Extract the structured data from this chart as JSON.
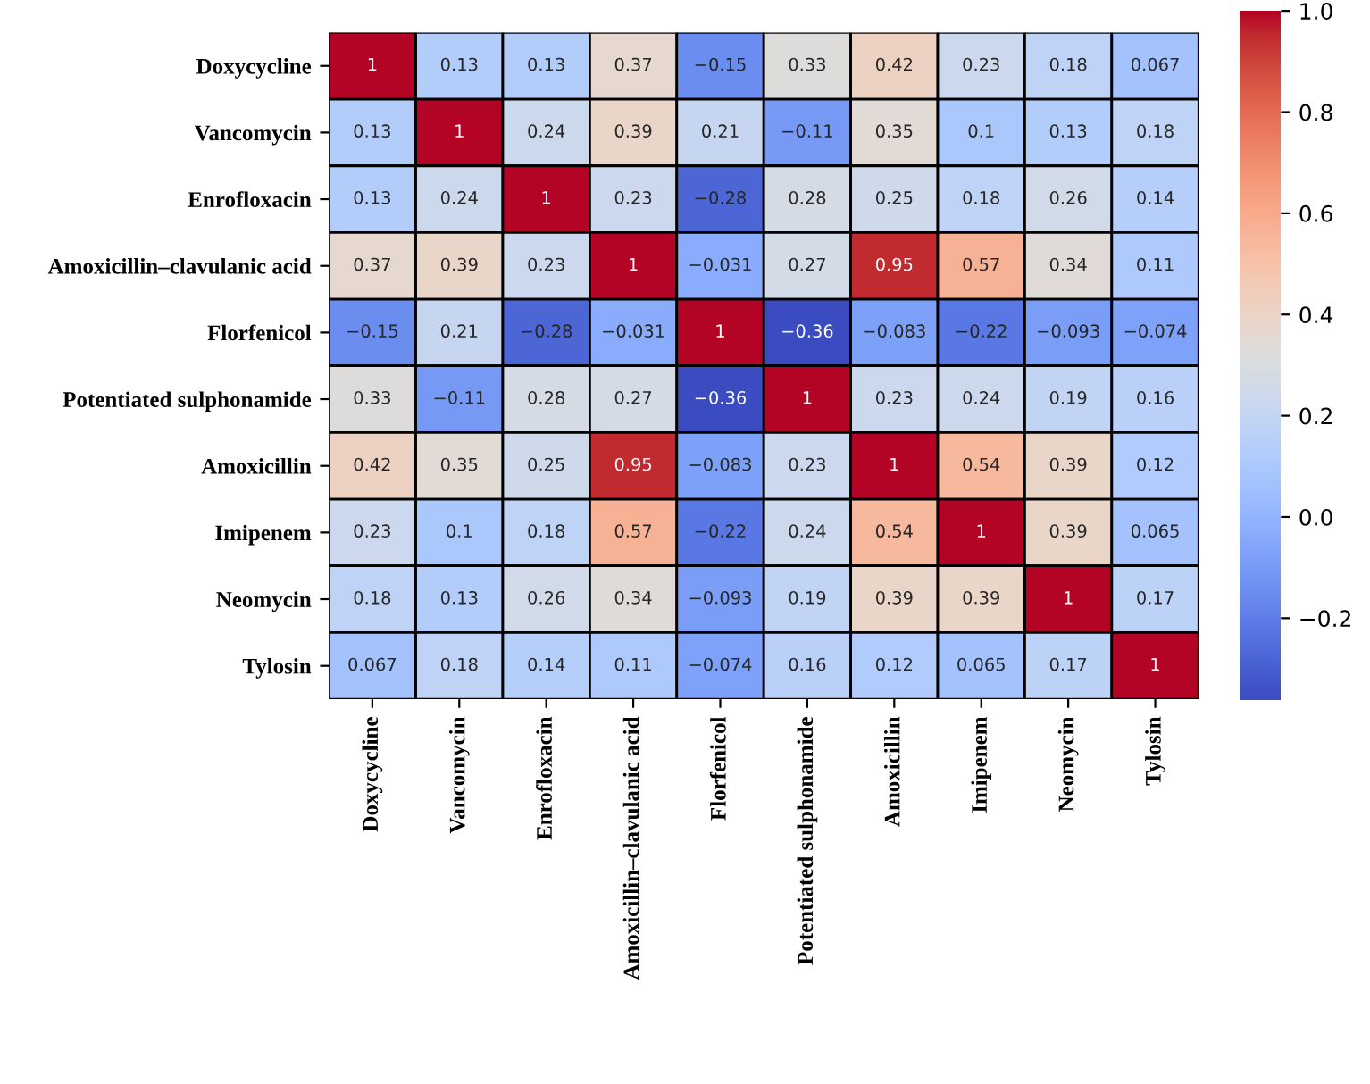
{
  "chart_data": {
    "type": "heatmap",
    "categories": [
      "Doxycycline",
      "Vancomycin",
      "Enrofloxacin",
      "Amoxicillin–clavulanic acid",
      "Florfenicol",
      "Potentiated sulphonamide",
      "Amoxicillin",
      "Imipenem",
      "Neomycin",
      "Tylosin"
    ],
    "y_categories": [
      "Doxycycline",
      "Vancomycin",
      "Enrofloxacin",
      "Amoxicillin–clavulanic acid",
      "Florfenicol",
      "Potentiated sulphonamide",
      "Amoxicillin",
      "Imipenem",
      "Neomycin",
      "Tylosin"
    ],
    "cells": [
      [
        1,
        0.13,
        0.13,
        0.37,
        -0.15,
        0.33,
        0.42,
        0.23,
        0.18,
        0.067
      ],
      [
        0.13,
        1,
        0.24,
        0.39,
        0.21,
        -0.11,
        0.35,
        0.1,
        0.13,
        0.18
      ],
      [
        0.13,
        0.24,
        1,
        0.23,
        -0.28,
        0.28,
        0.25,
        0.18,
        0.26,
        0.14
      ],
      [
        0.37,
        0.39,
        0.23,
        1,
        -0.031,
        0.27,
        0.95,
        0.57,
        0.34,
        0.11
      ],
      [
        -0.15,
        0.21,
        -0.28,
        -0.031,
        1,
        -0.36,
        -0.083,
        -0.22,
        -0.093,
        -0.074
      ],
      [
        0.33,
        -0.11,
        0.28,
        0.27,
        -0.36,
        1,
        0.23,
        0.24,
        0.19,
        0.16
      ],
      [
        0.42,
        0.35,
        0.25,
        0.95,
        -0.083,
        0.23,
        1,
        0.54,
        0.39,
        0.12
      ],
      [
        0.23,
        0.1,
        0.18,
        0.57,
        -0.22,
        0.24,
        0.54,
        1,
        0.39,
        0.065
      ],
      [
        0.18,
        0.13,
        0.26,
        0.34,
        -0.093,
        0.19,
        0.39,
        0.39,
        1,
        0.17
      ],
      [
        0.067,
        0.18,
        0.14,
        0.11,
        -0.074,
        0.16,
        0.12,
        0.065,
        0.17,
        1
      ]
    ],
    "clim": [
      -0.36,
      1
    ],
    "cticks": [
      {
        "value": -0.2,
        "label": "−0.2"
      },
      {
        "value": 0,
        "label": "0.0"
      },
      {
        "value": 0.2,
        "label": "0.2"
      },
      {
        "value": 0.4,
        "label": "0.4"
      },
      {
        "value": 0.6,
        "label": "0.6"
      },
      {
        "value": 0.8,
        "label": "0.8"
      },
      {
        "value": 1,
        "label": "1.0"
      }
    ],
    "data_labels": true
  }
}
